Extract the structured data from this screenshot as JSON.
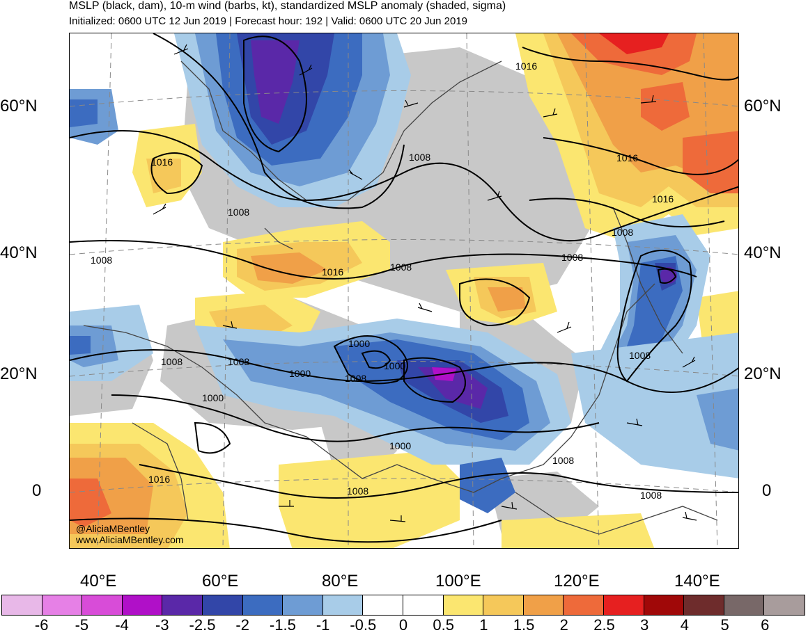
{
  "header": {
    "title": "MSLP (black, dam), 10-m wind (barbs, kt), standardized MSLP anomaly (shaded, sigma)",
    "subtitle": "Initialized: 0600 UTC 12 Jun 2019 | Forecast hour: 192 | Valid: 0600 UTC 20 Jun 2019"
  },
  "axes": {
    "latitude_labels": [
      "60°N",
      "40°N",
      "20°N",
      "0"
    ],
    "longitude_labels": [
      "40°E",
      "60°E",
      "80°E",
      "100°E",
      "120°E",
      "140°E"
    ]
  },
  "isobar_labels": [
    "1016",
    "1016",
    "1016",
    "1016",
    "1008",
    "1008",
    "1008",
    "1008",
    "1008",
    "1016",
    "1008",
    "1008",
    "1008",
    "1000",
    "1000",
    "1000",
    "1008",
    "1008",
    "1000",
    "1000",
    "1016",
    "1008",
    "1008",
    "1008"
  ],
  "credits": {
    "handle": "@AliciaMBentley",
    "website": "www.AliciaMBentley.com"
  },
  "colorbar": {
    "labels": [
      "-6",
      "-5",
      "-4",
      "-3",
      "-2.5",
      "-2",
      "-1.5",
      "-1",
      "-0.5",
      "0",
      "0.5",
      "1",
      "1.5",
      "2",
      "2.5",
      "3",
      "4",
      "5",
      "6"
    ],
    "colors": [
      "#e8b8e8",
      "#e680e6",
      "#d84cd8",
      "#b010c8",
      "#5a28a8",
      "#3246a8",
      "#3c6cc0",
      "#6e9cd4",
      "#a8cce8",
      "#ffffff",
      "#ffffff",
      "#fbe670",
      "#f5c85a",
      "#f0a048",
      "#ee6a3a",
      "#e62020",
      "#a00808",
      "#6e2c2c",
      "#786868",
      "#a89c9c"
    ]
  },
  "palette": {
    "land_gray": "#c8c8c8",
    "coast": "#444444",
    "isobar": "#000000",
    "grid": "#888888"
  }
}
